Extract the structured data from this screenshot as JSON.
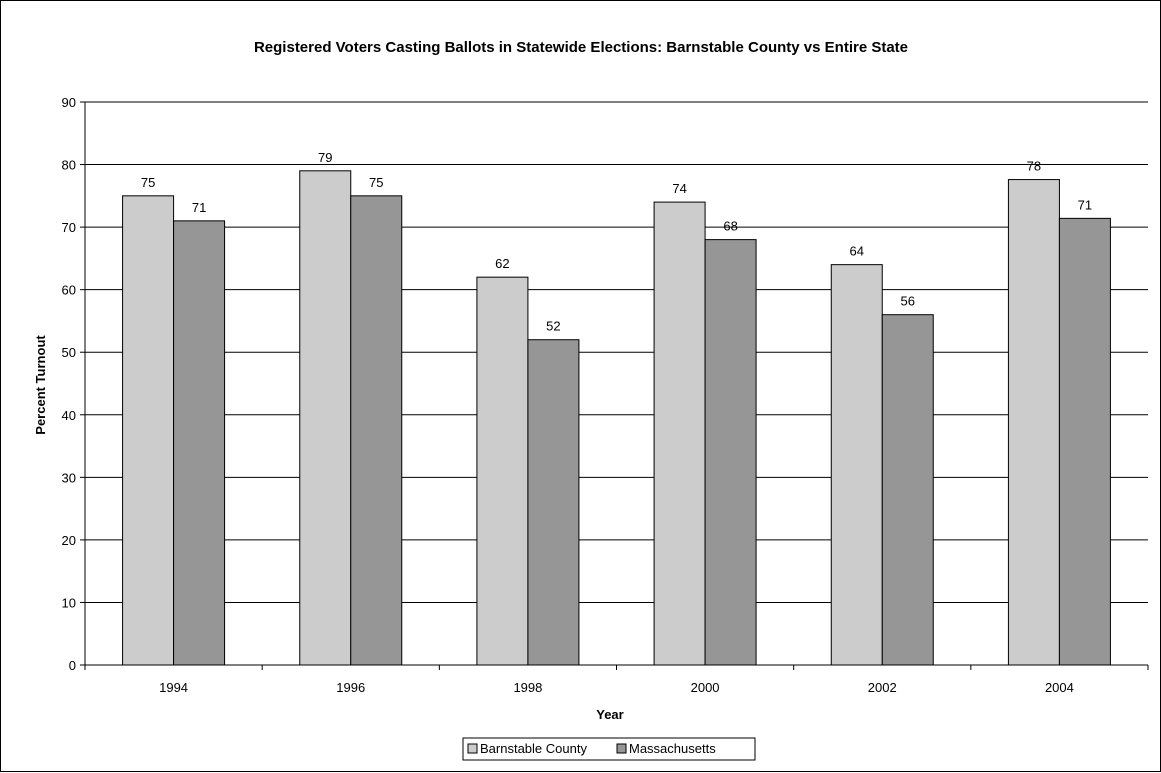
{
  "chart_data": {
    "type": "bar",
    "title": "Registered Voters Casting Ballots in Statewide Elections:  Barnstable County vs Entire State",
    "xlabel": "Year",
    "ylabel": "Percent Turnout",
    "categories": [
      "1994",
      "1996",
      "1998",
      "2000",
      "2002",
      "2004"
    ],
    "series": [
      {
        "name": "Barnstable County",
        "values": [
          75,
          79,
          62,
          74,
          64,
          77.6
        ],
        "labels": [
          "75",
          "79",
          "62",
          "74",
          "64",
          "78"
        ],
        "color": "#cccccc"
      },
      {
        "name": "Massachusetts",
        "values": [
          71,
          75,
          52,
          68,
          56,
          71.4
        ],
        "labels": [
          "71",
          "75",
          "52",
          "68",
          "56",
          "71"
        ],
        "color": "#969696"
      }
    ],
    "ylim": [
      0,
      90
    ],
    "yticks": [
      "0",
      "10",
      "20",
      "30",
      "40",
      "50",
      "60",
      "70",
      "80",
      "90"
    ],
    "grid": true,
    "legend_position": "bottom"
  }
}
